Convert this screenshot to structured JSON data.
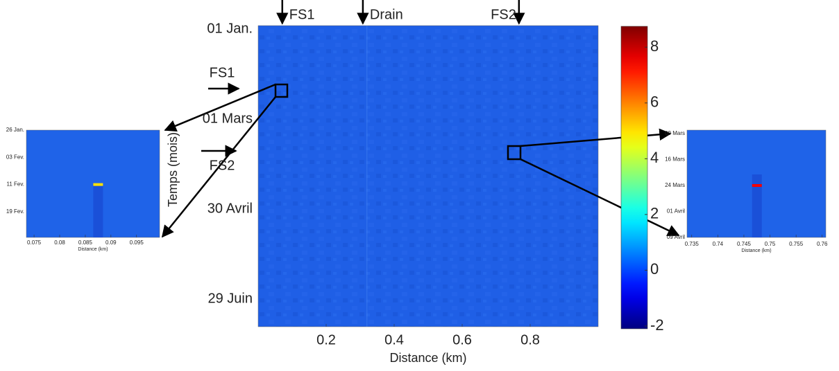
{
  "chart_data": [
    {
      "type": "heatmap",
      "xlabel": "Distance (km)",
      "ylabel": "Temps (mois)",
      "xlim": [
        0,
        1
      ],
      "xticks": [
        0.2,
        0.4,
        0.6,
        0.8
      ],
      "yticks": [
        "01 Jan.",
        "01 Mars",
        "30 Avril",
        "29 Juin"
      ],
      "colorbar": {
        "colormap": "jet",
        "clim": [
          -2.1,
          8.75
        ],
        "ticks": [
          -2,
          0,
          2,
          4,
          6,
          8
        ]
      },
      "annotations": [
        {
          "text": "FS1",
          "x": 0.071
        },
        {
          "text": "Drain",
          "x": 0.308
        },
        {
          "text": "FS2",
          "x": 0.767
        }
      ],
      "side_annotations": [
        "FS1",
        "FS2"
      ]
    },
    {
      "type": "heatmap",
      "xlabel": "Distance (km)",
      "xlim": [
        0.0735,
        0.0995
      ],
      "xticks": [
        0.075,
        0.08,
        0.085,
        0.09,
        0.095
      ],
      "yticks": [
        "26 Jan.",
        "03 Fev.",
        "11 Fev.",
        "19 Fev."
      ],
      "anomaly": {
        "x": 0.0875,
        "value": 5
      }
    },
    {
      "type": "heatmap",
      "xlabel": "Distance (km)",
      "xlim": [
        0.7341,
        0.7607
      ],
      "xticks": [
        0.735,
        0.74,
        0.745,
        0.75,
        0.755,
        0.76
      ],
      "yticks": [
        "09 Mars",
        "16 Mars",
        "24 Mars",
        "01 Avril",
        "09 Avril"
      ],
      "anomaly": {
        "x": 0.7475,
        "value": 7.5
      }
    }
  ]
}
